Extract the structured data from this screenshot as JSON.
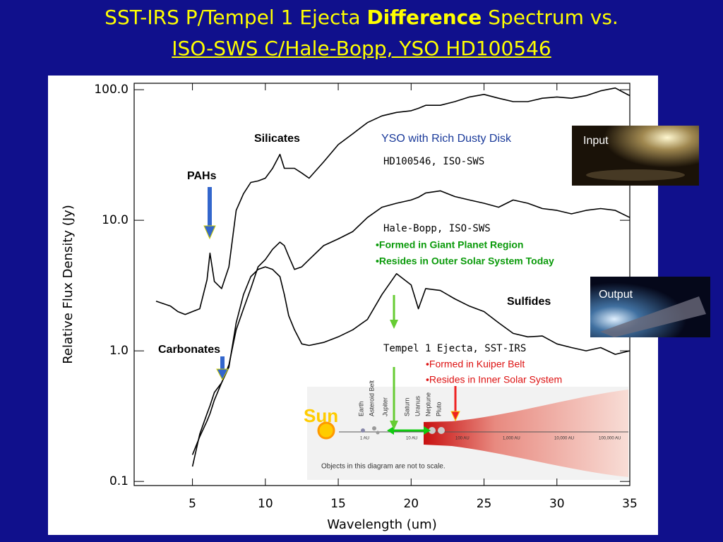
{
  "chart_data": {
    "type": "line",
    "title_parts": [
      "SST-IRS P/Tempel 1 Ejecta",
      "Difference",
      "Spectrum vs."
    ],
    "subtitle": "ISO-SWS C/Hale-Bopp, YSO HD100546",
    "x_label": "Wavelength (um)",
    "y_label": "Relative Flux Density (Jy)",
    "xlim": [
      1,
      35
    ],
    "xticks": [
      5,
      10,
      15,
      20,
      25,
      30,
      35
    ],
    "ylim": [
      0.093,
      112
    ],
    "ylog": true,
    "yticks": [
      {
        "value": 0.1,
        "label": "0.1"
      },
      {
        "value": 1,
        "label": "1.0"
      },
      {
        "value": 10,
        "label": "10.0"
      },
      {
        "value": 100,
        "label": "100.0"
      }
    ],
    "x": [
      2.5,
      3,
      3.5,
      4,
      4.5,
      5,
      5.5,
      6,
      6.2,
      6.5,
      7,
      7.5,
      8,
      8.5,
      9,
      9.5,
      10,
      10.5,
      11,
      11.3,
      11.6,
      12,
      12.5,
      13,
      14,
      15,
      16,
      17,
      18,
      19,
      20,
      20.5,
      21,
      22,
      23,
      24,
      25,
      26,
      27,
      28,
      29,
      30,
      31,
      32,
      33,
      34,
      35
    ],
    "series": [
      {
        "name": "HD100546, ISO-SWS",
        "color": "#000000",
        "values": [
          2.4,
          2.3,
          2.2,
          2.0,
          1.9,
          2.0,
          2.1,
          3.5,
          5.6,
          3.4,
          3.0,
          4.4,
          11.9,
          16,
          19.5,
          20,
          21,
          25,
          32,
          25,
          25,
          25,
          23,
          21,
          28,
          38,
          46,
          56,
          63,
          67,
          69,
          72,
          76,
          76,
          81,
          88,
          92,
          86,
          81,
          81,
          86,
          88,
          86,
          90,
          98,
          103,
          90
        ]
      },
      {
        "name": "Hale-Bopp, ISO-SWS",
        "color": "#000000",
        "values": [
          null,
          null,
          null,
          null,
          null,
          0.16,
          0.22,
          0.29,
          0.33,
          0.42,
          0.57,
          0.78,
          1.45,
          2.1,
          3.0,
          4.4,
          5.0,
          6.0,
          6.8,
          6.4,
          5.3,
          4.2,
          4.4,
          5.0,
          6.4,
          7.2,
          8.2,
          10.5,
          12.6,
          13.5,
          14.3,
          15,
          16.2,
          16.8,
          15.2,
          14.3,
          13.5,
          12.6,
          14.3,
          13.5,
          12.3,
          11.9,
          11.2,
          11.9,
          12.3,
          11.9,
          10.5
        ]
      },
      {
        "name": "Tempel 1 Ejecta, SST-IRS",
        "color": "#000000",
        "values": [
          null,
          null,
          null,
          null,
          null,
          0.13,
          0.23,
          0.33,
          0.38,
          0.48,
          0.57,
          0.75,
          1.64,
          2.7,
          3.7,
          4.2,
          4.4,
          4.2,
          3.7,
          2.7,
          1.86,
          1.45,
          1.13,
          1.1,
          1.16,
          1.28,
          1.45,
          1.74,
          2.7,
          3.9,
          3.2,
          2.1,
          3.0,
          2.9,
          2.5,
          2.2,
          2.0,
          1.64,
          1.36,
          1.28,
          1.3,
          1.13,
          1.06,
          1.0,
          1.06,
          0.94,
          1.0
        ]
      }
    ],
    "annotations": [
      "Silicates",
      "PAHs",
      "Carbonates",
      "Sulfides",
      "YSO with Rich Dusty Disk",
      "•Formed in Giant Planet Region",
      "•Resides in Outer Solar System Today",
      "•Formed in Kuiper Belt",
      "•Resides in Inner Solar System",
      "Input",
      "Output"
    ],
    "diagram": {
      "sun": "Sun",
      "bodies": [
        "Earth",
        "Asteroid Belt",
        "Jupiter",
        "Saturn",
        "Uranus",
        "Neptune",
        "Pluto"
      ],
      "note": "Objects in this diagram are not to scale.",
      "distances": [
        "1 AU",
        "10 AU",
        "100 AU",
        "1,000 AU",
        "10,000 AU",
        "100,000 AU"
      ]
    }
  }
}
